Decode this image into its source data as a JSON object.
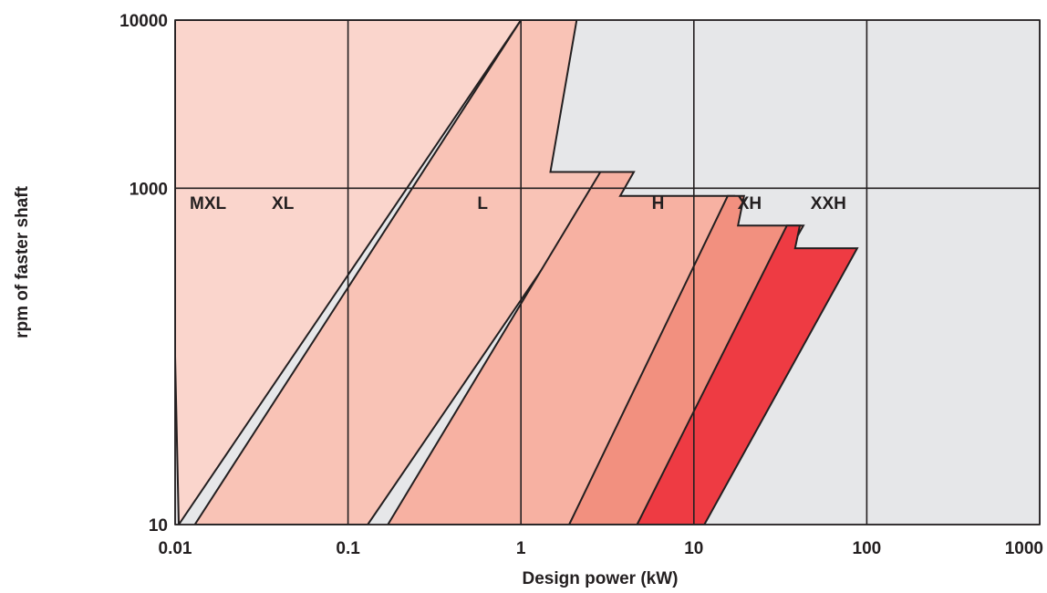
{
  "chart_data": {
    "type": "area",
    "title": "",
    "xlabel": "Design power (kW)",
    "ylabel": "rpm of faster shaft",
    "x_scale": "log",
    "y_scale": "log",
    "xlim": [
      0.01,
      1000
    ],
    "ylim": [
      10,
      10000
    ],
    "x_ticks": [
      {
        "value": 0.01,
        "label": "0.01"
      },
      {
        "value": 0.1,
        "label": "0.1"
      },
      {
        "value": 1,
        "label": "1"
      },
      {
        "value": 10,
        "label": "10"
      },
      {
        "value": 100,
        "label": "100"
      },
      {
        "value": 1000,
        "label": "1000"
      }
    ],
    "y_ticks": [
      {
        "value": 10,
        "label": "10"
      },
      {
        "value": 1000,
        "label": "1000"
      },
      {
        "value": 10000,
        "label": "10000"
      }
    ],
    "grid": true,
    "background_color": "#e6e7e9",
    "regions": [
      {
        "name": "MXL",
        "color": "#fde8e2",
        "points": [
          [
            0.01,
            10000
          ],
          [
            1.0,
            10000
          ],
          [
            0.01,
            100
          ]
        ],
        "label_at": [
          0.0155,
          820
        ]
      },
      {
        "name": "XL",
        "color": "#fad5cc",
        "points": [
          [
            0.0105,
            10
          ],
          [
            1.0,
            10000
          ],
          [
            0.01,
            10000
          ],
          [
            0.01,
            100
          ]
        ],
        "label_at": [
          0.042,
          820
        ]
      },
      {
        "name": "L",
        "color": "#f9c3b6",
        "points": [
          [
            0.013,
            10
          ],
          [
            1.0,
            10000
          ],
          [
            2.1,
            10000
          ],
          [
            1.48,
            1250
          ],
          [
            3.2,
            1250
          ],
          [
            0.13,
            10
          ]
        ],
        "label_at": [
          0.6,
          820
        ]
      },
      {
        "name": "H",
        "color": "#f7b1a2",
        "points": [
          [
            0.17,
            10
          ],
          [
            2.88,
            1250
          ],
          [
            4.5,
            1250
          ],
          [
            3.75,
            900
          ],
          [
            17.0,
            900
          ],
          [
            1.9,
            10
          ]
        ],
        "label_at": [
          6.2,
          820
        ]
      },
      {
        "name": "XH",
        "color": "#f2907f",
        "points": [
          [
            1.9,
            10
          ],
          [
            15.7,
            900
          ],
          [
            19.5,
            900
          ],
          [
            18.0,
            600
          ],
          [
            43.0,
            600
          ],
          [
            4.7,
            10
          ]
        ],
        "label_at": [
          21.0,
          820
        ]
      },
      {
        "name": "XXH",
        "color": "#ee3b43",
        "points": [
          [
            4.7,
            10
          ],
          [
            34.5,
            600
          ],
          [
            41.0,
            600
          ],
          [
            38.5,
            440
          ],
          [
            88.0,
            440
          ],
          [
            11.5,
            10
          ]
        ],
        "label_at": [
          60.0,
          820
        ]
      }
    ]
  }
}
